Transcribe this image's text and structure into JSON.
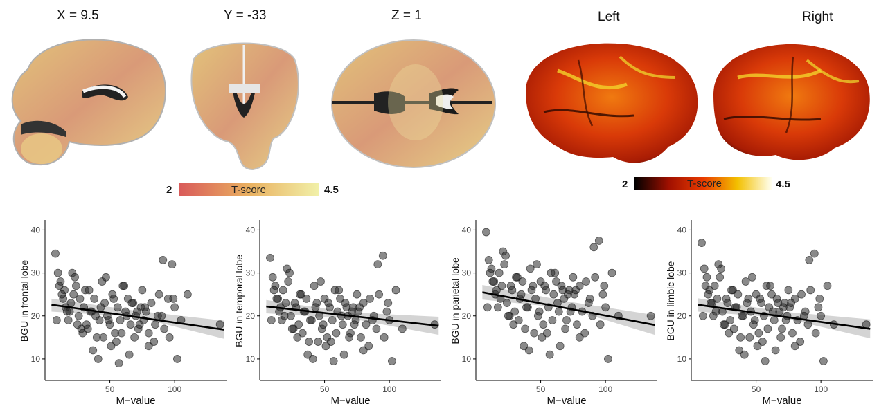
{
  "slices": [
    {
      "title": "X = 9.5",
      "view": "sagittal"
    },
    {
      "title": "Y = -33",
      "view": "coronal"
    },
    {
      "title": "Z =  1",
      "view": "axial"
    }
  ],
  "surfaces": [
    {
      "title": "Left",
      "view": "lateral-left"
    },
    {
      "title": "Right",
      "view": "lateral-right"
    }
  ],
  "colorbars": [
    {
      "min": "2",
      "max": "4.5",
      "label": "T-score",
      "colors": [
        "#d95a5a",
        "#e9b060",
        "#f1f0a8"
      ]
    },
    {
      "min": "2",
      "max": "4.5",
      "label": "T-score",
      "colors": [
        "#000000",
        "#a01000",
        "#e83a00",
        "#f3c000",
        "#fffff0"
      ]
    }
  ],
  "chart_data": [
    {
      "type": "scatter",
      "xlabel": "M−value",
      "ylabel": "BGU in frontal lobe",
      "xticks": [
        50,
        100
      ],
      "yticks": [
        10,
        20,
        30,
        40
      ],
      "xlim": [
        0,
        140
      ],
      "ylim": [
        5,
        42
      ],
      "fit_line": {
        "x": [
          5,
          138
        ],
        "y": [
          22.6,
          16.8
        ]
      },
      "ci_band": {
        "x": [
          5,
          70,
          138
        ],
        "lower": [
          21.0,
          19.8,
          14.7
        ],
        "upper": [
          24.0,
          21.2,
          18.9
        ]
      },
      "points": {
        "x": [
          8,
          10,
          12,
          14,
          15,
          17,
          18,
          20,
          22,
          24,
          26,
          28,
          30,
          32,
          34,
          36,
          38,
          40,
          42,
          44,
          46,
          48,
          50,
          52,
          54,
          56,
          58,
          60,
          62,
          64,
          66,
          68,
          70,
          72,
          74,
          76,
          78,
          80,
          82,
          85,
          88,
          90,
          92,
          95,
          98,
          100,
          105,
          110,
          135,
          9,
          11,
          13,
          16,
          19,
          21,
          23,
          25,
          27,
          29,
          31,
          33,
          35,
          37,
          39,
          41,
          43,
          45,
          47,
          49,
          51,
          53,
          55,
          57,
          59,
          61,
          63,
          65,
          67,
          69,
          71,
          73,
          75,
          77,
          80,
          84,
          87,
          91,
          96,
          99,
          102
        ],
        "y": [
          34.5,
          30,
          28,
          24,
          26,
          21,
          19,
          23,
          25,
          27,
          20,
          17,
          22,
          18,
          26,
          21,
          24,
          15,
          19,
          28,
          23,
          20,
          18,
          25,
          16,
          22,
          19,
          27,
          21,
          24,
          18,
          23,
          20,
          17,
          22,
          19,
          21,
          16,
          23,
          18,
          25,
          20,
          17,
          24,
          32,
          22,
          19,
          25,
          18,
          19,
          27,
          25,
          22,
          21,
          30,
          29,
          18,
          24,
          16,
          26,
          17,
          21,
          12,
          20,
          10,
          22,
          15,
          29,
          19,
          13,
          24,
          14,
          9,
          16,
          27,
          20,
          11,
          23,
          15,
          21,
          18,
          26,
          22,
          13,
          14,
          20,
          33,
          15,
          24,
          10
        ]
      }
    },
    {
      "type": "scatter",
      "xlabel": "M−value",
      "ylabel": "BGU in temporal lobe",
      "xticks": [
        50,
        100
      ],
      "yticks": [
        10,
        20,
        30,
        40
      ],
      "xlim": [
        0,
        140
      ],
      "ylim": [
        5,
        42
      ],
      "fit_line": {
        "x": [
          5,
          138
        ],
        "y": [
          22.2,
          17.7
        ]
      },
      "ci_band": {
        "x": [
          5,
          70,
          138
        ],
        "lower": [
          20.6,
          19.4,
          15.6
        ],
        "upper": [
          23.7,
          20.8,
          19.8
        ]
      },
      "points": {
        "x": [
          8,
          10,
          12,
          14,
          15,
          17,
          18,
          20,
          22,
          24,
          26,
          28,
          30,
          32,
          34,
          36,
          38,
          40,
          42,
          44,
          46,
          48,
          50,
          52,
          54,
          56,
          58,
          60,
          62,
          64,
          66,
          68,
          70,
          72,
          74,
          76,
          78,
          80,
          82,
          85,
          88,
          90,
          92,
          95,
          98,
          100,
          105,
          110,
          135,
          9,
          11,
          13,
          16,
          19,
          21,
          23,
          25,
          27,
          29,
          31,
          33,
          35,
          37,
          39,
          41,
          43,
          45,
          47,
          49,
          51,
          53,
          55,
          57,
          59,
          61,
          63,
          65,
          67,
          69,
          71,
          73,
          75,
          77,
          80,
          84,
          87,
          91,
          96,
          99,
          102
        ],
        "y": [
          33.5,
          29,
          27,
          24,
          21,
          19,
          26,
          23,
          28,
          20,
          17,
          22,
          18,
          25,
          21,
          24,
          14,
          19,
          27,
          23,
          20,
          17,
          24,
          15,
          22,
          19,
          26,
          21,
          24,
          18,
          23,
          20,
          16,
          22,
          19,
          21,
          15,
          23,
          18,
          24,
          20,
          17,
          25,
          34,
          21,
          19,
          26,
          17,
          18,
          19,
          26,
          24,
          22,
          20,
          31,
          30,
          17,
          23,
          15,
          25,
          16,
          21,
          11,
          19,
          10,
          22,
          14,
          28,
          18,
          13,
          23,
          14,
          9.5,
          16,
          26,
          20,
          11,
          22,
          15,
          21,
          18,
          25,
          22,
          12,
          13,
          19,
          32,
          15,
          23,
          9.5
        ]
      }
    },
    {
      "type": "scatter",
      "xlabel": "M−value",
      "ylabel": "BGU in parietal lobe",
      "xticks": [
        50,
        100
      ],
      "yticks": [
        10,
        20,
        30,
        40
      ],
      "xlim": [
        0,
        140
      ],
      "ylim": [
        5,
        42
      ],
      "fit_line": {
        "x": [
          5,
          138
        ],
        "y": [
          25.5,
          17.9
        ]
      },
      "ci_band": {
        "x": [
          5,
          70,
          138
        ],
        "lower": [
          23.8,
          21.8,
          15.6
        ],
        "upper": [
          27.2,
          23.4,
          20.2
        ]
      },
      "points": {
        "x": [
          8,
          10,
          12,
          14,
          15,
          17,
          18,
          20,
          22,
          24,
          26,
          28,
          30,
          32,
          34,
          36,
          38,
          40,
          42,
          44,
          46,
          48,
          50,
          52,
          54,
          56,
          58,
          60,
          62,
          64,
          66,
          68,
          70,
          72,
          74,
          76,
          78,
          80,
          82,
          85,
          88,
          90,
          92,
          95,
          98,
          100,
          105,
          110,
          135,
          9,
          11,
          13,
          16,
          19,
          21,
          23,
          25,
          27,
          29,
          31,
          33,
          35,
          37,
          39,
          41,
          43,
          45,
          47,
          49,
          51,
          53,
          55,
          57,
          59,
          61,
          63,
          65,
          67,
          69,
          71,
          73,
          75,
          77,
          80,
          84,
          87,
          91,
          96,
          99,
          102
        ],
        "y": [
          39.5,
          33,
          31,
          28,
          25,
          22,
          30,
          27,
          32,
          23,
          20,
          26,
          21,
          29,
          24,
          28,
          17,
          22,
          31,
          27,
          24,
          20,
          28,
          18,
          26,
          22,
          30,
          25,
          28,
          21,
          27,
          24,
          19,
          26,
          22,
          25,
          18,
          27,
          21,
          28,
          24,
          20,
          29,
          37.5,
          25,
          22,
          30,
          20,
          20,
          22,
          30,
          28,
          26,
          24,
          35,
          34,
          20,
          27,
          18,
          29,
          19,
          25,
          13,
          22,
          12,
          26,
          16,
          32,
          21,
          15,
          27,
          16,
          11,
          19,
          30,
          23,
          13,
          26,
          17,
          25,
          21,
          29,
          26,
          15,
          16,
          23,
          36,
          18,
          27,
          10
        ]
      }
    },
    {
      "type": "scatter",
      "xlabel": "M−value",
      "ylabel": "BGU in limbic lobe",
      "xticks": [
        50,
        100
      ],
      "yticks": [
        10,
        20,
        30,
        40
      ],
      "xlim": [
        0,
        140
      ],
      "ylim": [
        5,
        42
      ],
      "fit_line": {
        "x": [
          5,
          138
        ],
        "y": [
          22.6,
          17.0
        ]
      },
      "ci_band": {
        "x": [
          5,
          70,
          138
        ],
        "lower": [
          21.0,
          19.6,
          14.8
        ],
        "upper": [
          24.1,
          21.0,
          19.2
        ]
      },
      "points": {
        "x": [
          8,
          10,
          12,
          14,
          15,
          17,
          18,
          20,
          22,
          24,
          26,
          28,
          30,
          32,
          34,
          36,
          38,
          40,
          42,
          44,
          46,
          48,
          50,
          52,
          54,
          56,
          58,
          60,
          62,
          64,
          66,
          68,
          70,
          72,
          74,
          76,
          78,
          80,
          82,
          85,
          88,
          90,
          92,
          95,
          98,
          100,
          105,
          110,
          135,
          9,
          11,
          13,
          16,
          19,
          21,
          23,
          25,
          27,
          29,
          31,
          33,
          35,
          37,
          39,
          41,
          43,
          45,
          47,
          49,
          51,
          53,
          55,
          57,
          59,
          61,
          63,
          65,
          67,
          69,
          71,
          73,
          75,
          77,
          80,
          84,
          87,
          91,
          96,
          99,
          102
        ],
        "y": [
          37,
          31,
          29,
          26,
          23,
          20,
          27,
          24,
          29,
          21,
          18,
          23,
          19,
          26,
          22,
          25,
          15,
          20,
          28,
          24,
          21,
          18,
          25,
          16,
          23,
          20,
          27,
          22,
          25,
          19,
          24,
          21,
          17,
          23,
          20,
          22,
          16,
          24,
          19,
          25,
          21,
          18,
          26,
          34.5,
          22,
          20,
          27,
          18,
          18,
          20,
          27,
          25,
          23,
          21,
          32,
          31,
          18,
          24,
          16,
          26,
          17,
          22,
          12,
          20,
          11,
          23,
          15,
          29,
          19,
          13,
          24,
          14,
          9.5,
          17,
          27,
          21,
          12,
          23,
          15,
          22,
          19,
          26,
          23,
          13,
          14,
          20,
          33,
          16,
          24,
          9.5
        ]
      }
    }
  ]
}
